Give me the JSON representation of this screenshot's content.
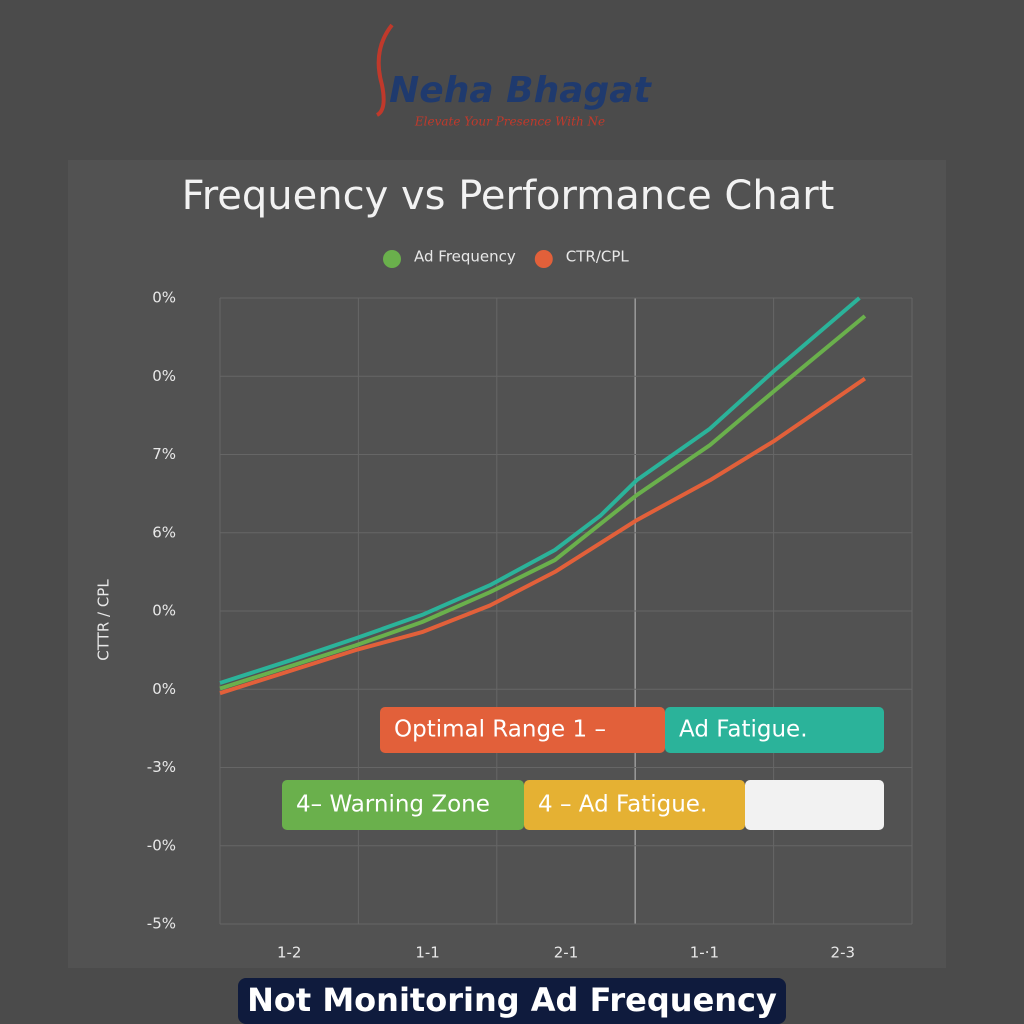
{
  "brand": {
    "name": "Neha Bhagat",
    "tagline": "Elevate Your Presence With Ne"
  },
  "chart_data": {
    "type": "line",
    "title": "Frequency vs Performance Chart",
    "ylabel": "CTTR / CPL",
    "xlim": [
      0,
      5
    ],
    "ylim": [
      0,
      8
    ],
    "xticks": [
      {
        "value": 0.5,
        "label": "1-2"
      },
      {
        "value": 1.5,
        "label": "1-1"
      },
      {
        "value": 2.5,
        "label": "2-1"
      },
      {
        "value": 3.5,
        "label": "1-·1"
      },
      {
        "value": 4.5,
        "label": "2-3"
      }
    ],
    "yticks": [
      {
        "value": 0,
        "label": "-5%"
      },
      {
        "value": 1,
        "label": "-0%"
      },
      {
        "value": 2,
        "label": "-3%"
      },
      {
        "value": 3,
        "label": "0%"
      },
      {
        "value": 4,
        "label": "0%"
      },
      {
        "value": 5,
        "label": "6%"
      },
      {
        "value": 6,
        "label": "7%"
      },
      {
        "value": 7,
        "label": "0%"
      },
      {
        "value": 8,
        "label": "0%"
      }
    ],
    "grid": true,
    "series": [
      {
        "color": "#2bb39a",
        "x": [
          0,
          0.51,
          0.98,
          1.46,
          1.95,
          2.42,
          2.75,
          3.01,
          3.54,
          4.01,
          4.62
        ],
        "values": [
          3.08,
          3.37,
          3.65,
          3.95,
          4.33,
          4.78,
          5.22,
          5.67,
          6.33,
          7.08,
          8.0
        ]
      },
      {
        "name": "Ad Frequency",
        "color": "#6ab04c",
        "x": [
          0,
          0.98,
          1.46,
          1.95,
          2.42,
          3.01,
          3.54,
          4.01,
          4.66
        ],
        "values": [
          3.01,
          3.56,
          3.86,
          4.24,
          4.65,
          5.48,
          6.12,
          6.82,
          7.77
        ]
      },
      {
        "name": "CTR/CPL",
        "color": "#e2603a",
        "x": [
          0,
          0.98,
          1.46,
          1.95,
          2.42,
          3.01,
          3.54,
          4.01,
          4.66
        ],
        "values": [
          2.95,
          3.5,
          3.73,
          4.07,
          4.5,
          5.16,
          5.67,
          6.18,
          6.97
        ]
      }
    ],
    "annotations": [
      {
        "text": "Optimal Range 1 –",
        "color": "#e2603a"
      },
      {
        "text": "Ad  Fatigue.",
        "color": "#2bb39a"
      },
      {
        "text": "4– Warning Zone",
        "color": "#6ab04c"
      },
      {
        "text": "4 – Ad Fatigue.",
        "color": "#e5b133"
      },
      {
        "color": "#f2f2f2"
      }
    ]
  },
  "footer": "Not Monitoring Ad Frequency"
}
